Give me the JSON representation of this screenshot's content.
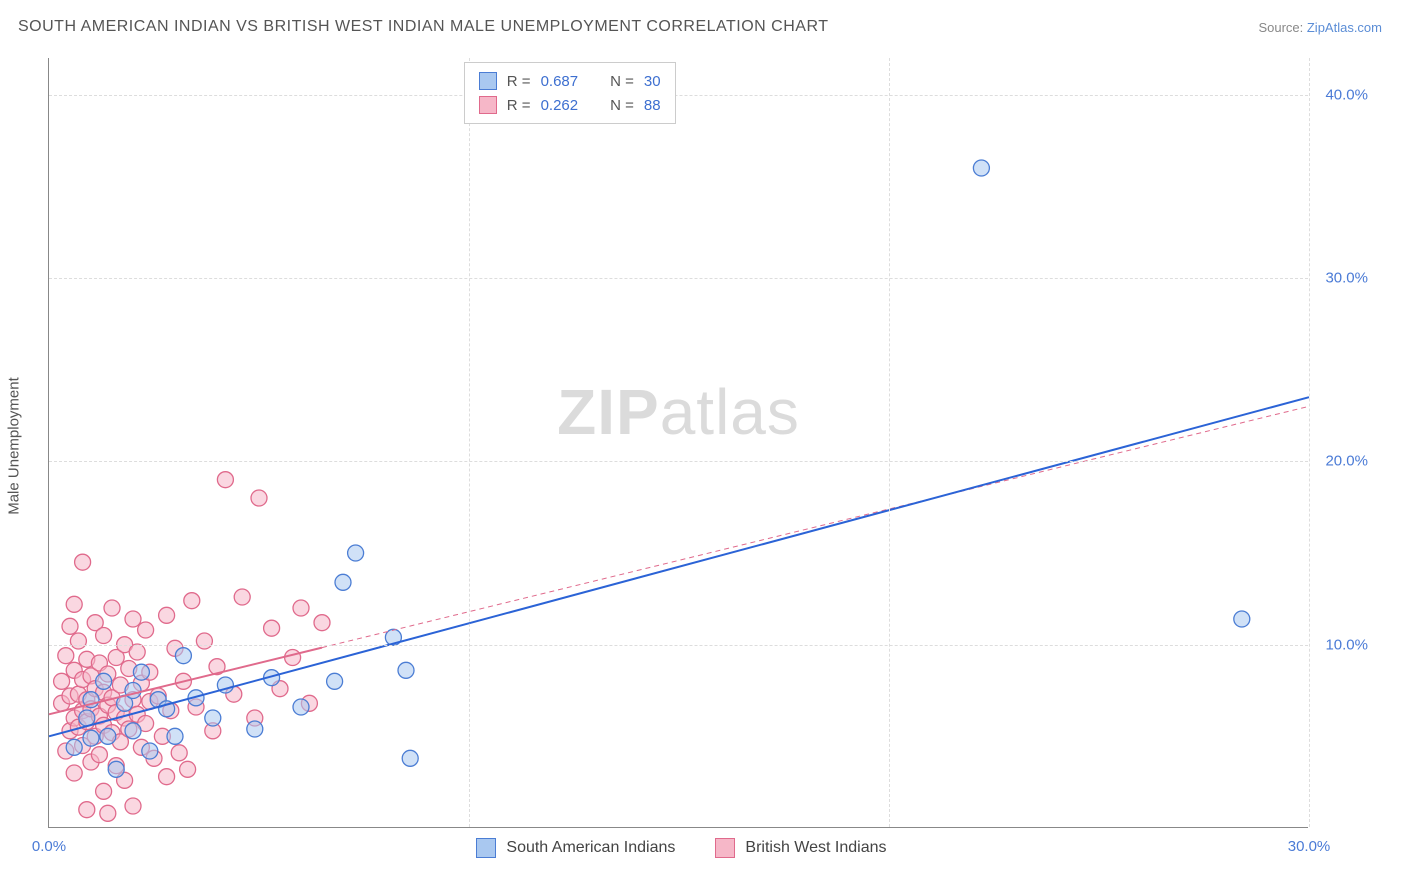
{
  "title": "SOUTH AMERICAN INDIAN VS BRITISH WEST INDIAN MALE UNEMPLOYMENT CORRELATION CHART",
  "source_label": "Source: ",
  "source_name": "ZipAtlas.com",
  "ylabel": "Male Unemployment",
  "watermark_a": "ZIP",
  "watermark_b": "atlas",
  "chart": {
    "type": "scatter",
    "xlim": [
      0,
      30
    ],
    "ylim": [
      0,
      42
    ],
    "xticks": [
      0,
      30
    ],
    "xtick_labels": [
      "0.0%",
      "30.0%"
    ],
    "xgrid": [
      10,
      20,
      30
    ],
    "yticks": [
      10,
      20,
      30,
      40
    ],
    "ytick_labels": [
      "10.0%",
      "20.0%",
      "30.0%",
      "40.0%"
    ],
    "background_color": "#ffffff",
    "grid_color": "#dddddd",
    "axis_color": "#888888",
    "marker_radius": 8,
    "marker_opacity": 0.55,
    "marker_stroke_width": 1.3,
    "trend_line_width": 2
  },
  "correlation_legend": {
    "r_label": "R =",
    "n_label": "N =",
    "series": [
      {
        "r": "0.687",
        "n": "30",
        "swatch_fill": "#a9c8f0",
        "swatch_stroke": "#4b7dd4"
      },
      {
        "r": "0.262",
        "n": "88",
        "swatch_fill": "#f6b7c8",
        "swatch_stroke": "#e06a8c"
      }
    ]
  },
  "legend_bottom": [
    {
      "label": "South American Indians",
      "swatch_fill": "#a9c8f0",
      "swatch_stroke": "#4b7dd4"
    },
    {
      "label": "British West Indians",
      "swatch_fill": "#f6b7c8",
      "swatch_stroke": "#e06a8c"
    }
  ],
  "series": [
    {
      "name": "south_american_indians",
      "fill": "#a9c8f0",
      "stroke": "#4b7dd4",
      "trend_stroke": "#2b63d6",
      "trend_dash": "none",
      "trend": {
        "x1": 0,
        "y1": 5.0,
        "x2": 30,
        "y2": 23.5
      },
      "points": [
        [
          0.6,
          4.4
        ],
        [
          0.9,
          6.0
        ],
        [
          1.0,
          7.0
        ],
        [
          1.0,
          4.9
        ],
        [
          1.3,
          8.0
        ],
        [
          1.4,
          5.0
        ],
        [
          1.6,
          3.2
        ],
        [
          1.8,
          6.8
        ],
        [
          2.0,
          5.3
        ],
        [
          2.0,
          7.5
        ],
        [
          2.2,
          8.5
        ],
        [
          2.4,
          4.2
        ],
        [
          2.6,
          7.0
        ],
        [
          2.8,
          6.5
        ],
        [
          3.0,
          5.0
        ],
        [
          3.2,
          9.4
        ],
        [
          3.5,
          7.1
        ],
        [
          3.9,
          6.0
        ],
        [
          4.2,
          7.8
        ],
        [
          4.9,
          5.4
        ],
        [
          5.3,
          8.2
        ],
        [
          6.0,
          6.6
        ],
        [
          6.8,
          8.0
        ],
        [
          7.0,
          13.4
        ],
        [
          7.3,
          15.0
        ],
        [
          8.2,
          10.4
        ],
        [
          8.5,
          8.6
        ],
        [
          8.6,
          3.8
        ],
        [
          22.2,
          36.0
        ],
        [
          28.4,
          11.4
        ]
      ]
    },
    {
      "name": "british_west_indians",
      "fill": "#f6b7c8",
      "stroke": "#e06a8c",
      "trend_stroke": "#e06a8c",
      "trend_dash": "5,4",
      "trend": {
        "x1": 0,
        "y1": 6.2,
        "x2": 30,
        "y2": 23.0
      },
      "points": [
        [
          0.3,
          6.8
        ],
        [
          0.3,
          8.0
        ],
        [
          0.4,
          4.2
        ],
        [
          0.4,
          9.4
        ],
        [
          0.5,
          7.2
        ],
        [
          0.5,
          5.3
        ],
        [
          0.5,
          11.0
        ],
        [
          0.6,
          6.0
        ],
        [
          0.6,
          8.6
        ],
        [
          0.6,
          3.0
        ],
        [
          0.6,
          12.2
        ],
        [
          0.7,
          7.3
        ],
        [
          0.7,
          5.5
        ],
        [
          0.7,
          10.2
        ],
        [
          0.8,
          6.4
        ],
        [
          0.8,
          8.1
        ],
        [
          0.8,
          4.5
        ],
        [
          0.8,
          14.5
        ],
        [
          0.9,
          7.0
        ],
        [
          0.9,
          5.8
        ],
        [
          0.9,
          9.2
        ],
        [
          1.0,
          6.5
        ],
        [
          1.0,
          8.3
        ],
        [
          1.0,
          3.6
        ],
        [
          1.1,
          7.6
        ],
        [
          1.1,
          5.0
        ],
        [
          1.1,
          11.2
        ],
        [
          1.2,
          6.1
        ],
        [
          1.2,
          9.0
        ],
        [
          1.2,
          4.0
        ],
        [
          1.3,
          7.4
        ],
        [
          1.3,
          5.6
        ],
        [
          1.3,
          10.5
        ],
        [
          1.4,
          6.7
        ],
        [
          1.4,
          8.4
        ],
        [
          1.4,
          0.8
        ],
        [
          1.5,
          7.1
        ],
        [
          1.5,
          5.2
        ],
        [
          1.5,
          12.0
        ],
        [
          1.6,
          6.3
        ],
        [
          1.6,
          9.3
        ],
        [
          1.6,
          3.4
        ],
        [
          1.7,
          7.8
        ],
        [
          1.7,
          4.7
        ],
        [
          1.8,
          6.0
        ],
        [
          1.8,
          10.0
        ],
        [
          1.8,
          2.6
        ],
        [
          1.9,
          8.7
        ],
        [
          1.9,
          5.4
        ],
        [
          2.0,
          7.0
        ],
        [
          2.0,
          11.4
        ],
        [
          2.0,
          1.2
        ],
        [
          2.1,
          6.2
        ],
        [
          2.1,
          9.6
        ],
        [
          2.2,
          4.4
        ],
        [
          2.2,
          7.9
        ],
        [
          2.3,
          5.7
        ],
        [
          2.3,
          10.8
        ],
        [
          2.4,
          6.9
        ],
        [
          2.4,
          8.5
        ],
        [
          2.5,
          3.8
        ],
        [
          2.6,
          7.2
        ],
        [
          2.7,
          5.0
        ],
        [
          2.8,
          11.6
        ],
        [
          2.9,
          6.4
        ],
        [
          3.0,
          9.8
        ],
        [
          3.1,
          4.1
        ],
        [
          3.2,
          8.0
        ],
        [
          3.3,
          3.2
        ],
        [
          3.4,
          12.4
        ],
        [
          3.5,
          6.6
        ],
        [
          3.7,
          10.2
        ],
        [
          3.9,
          5.3
        ],
        [
          4.0,
          8.8
        ],
        [
          4.2,
          19.0
        ],
        [
          4.4,
          7.3
        ],
        [
          4.6,
          12.6
        ],
        [
          4.9,
          6.0
        ],
        [
          5.0,
          18.0
        ],
        [
          5.3,
          10.9
        ],
        [
          5.5,
          7.6
        ],
        [
          5.8,
          9.3
        ],
        [
          6.0,
          12.0
        ],
        [
          6.2,
          6.8
        ],
        [
          6.5,
          11.2
        ],
        [
          0.9,
          1.0
        ],
        [
          1.3,
          2.0
        ],
        [
          2.8,
          2.8
        ]
      ]
    }
  ]
}
